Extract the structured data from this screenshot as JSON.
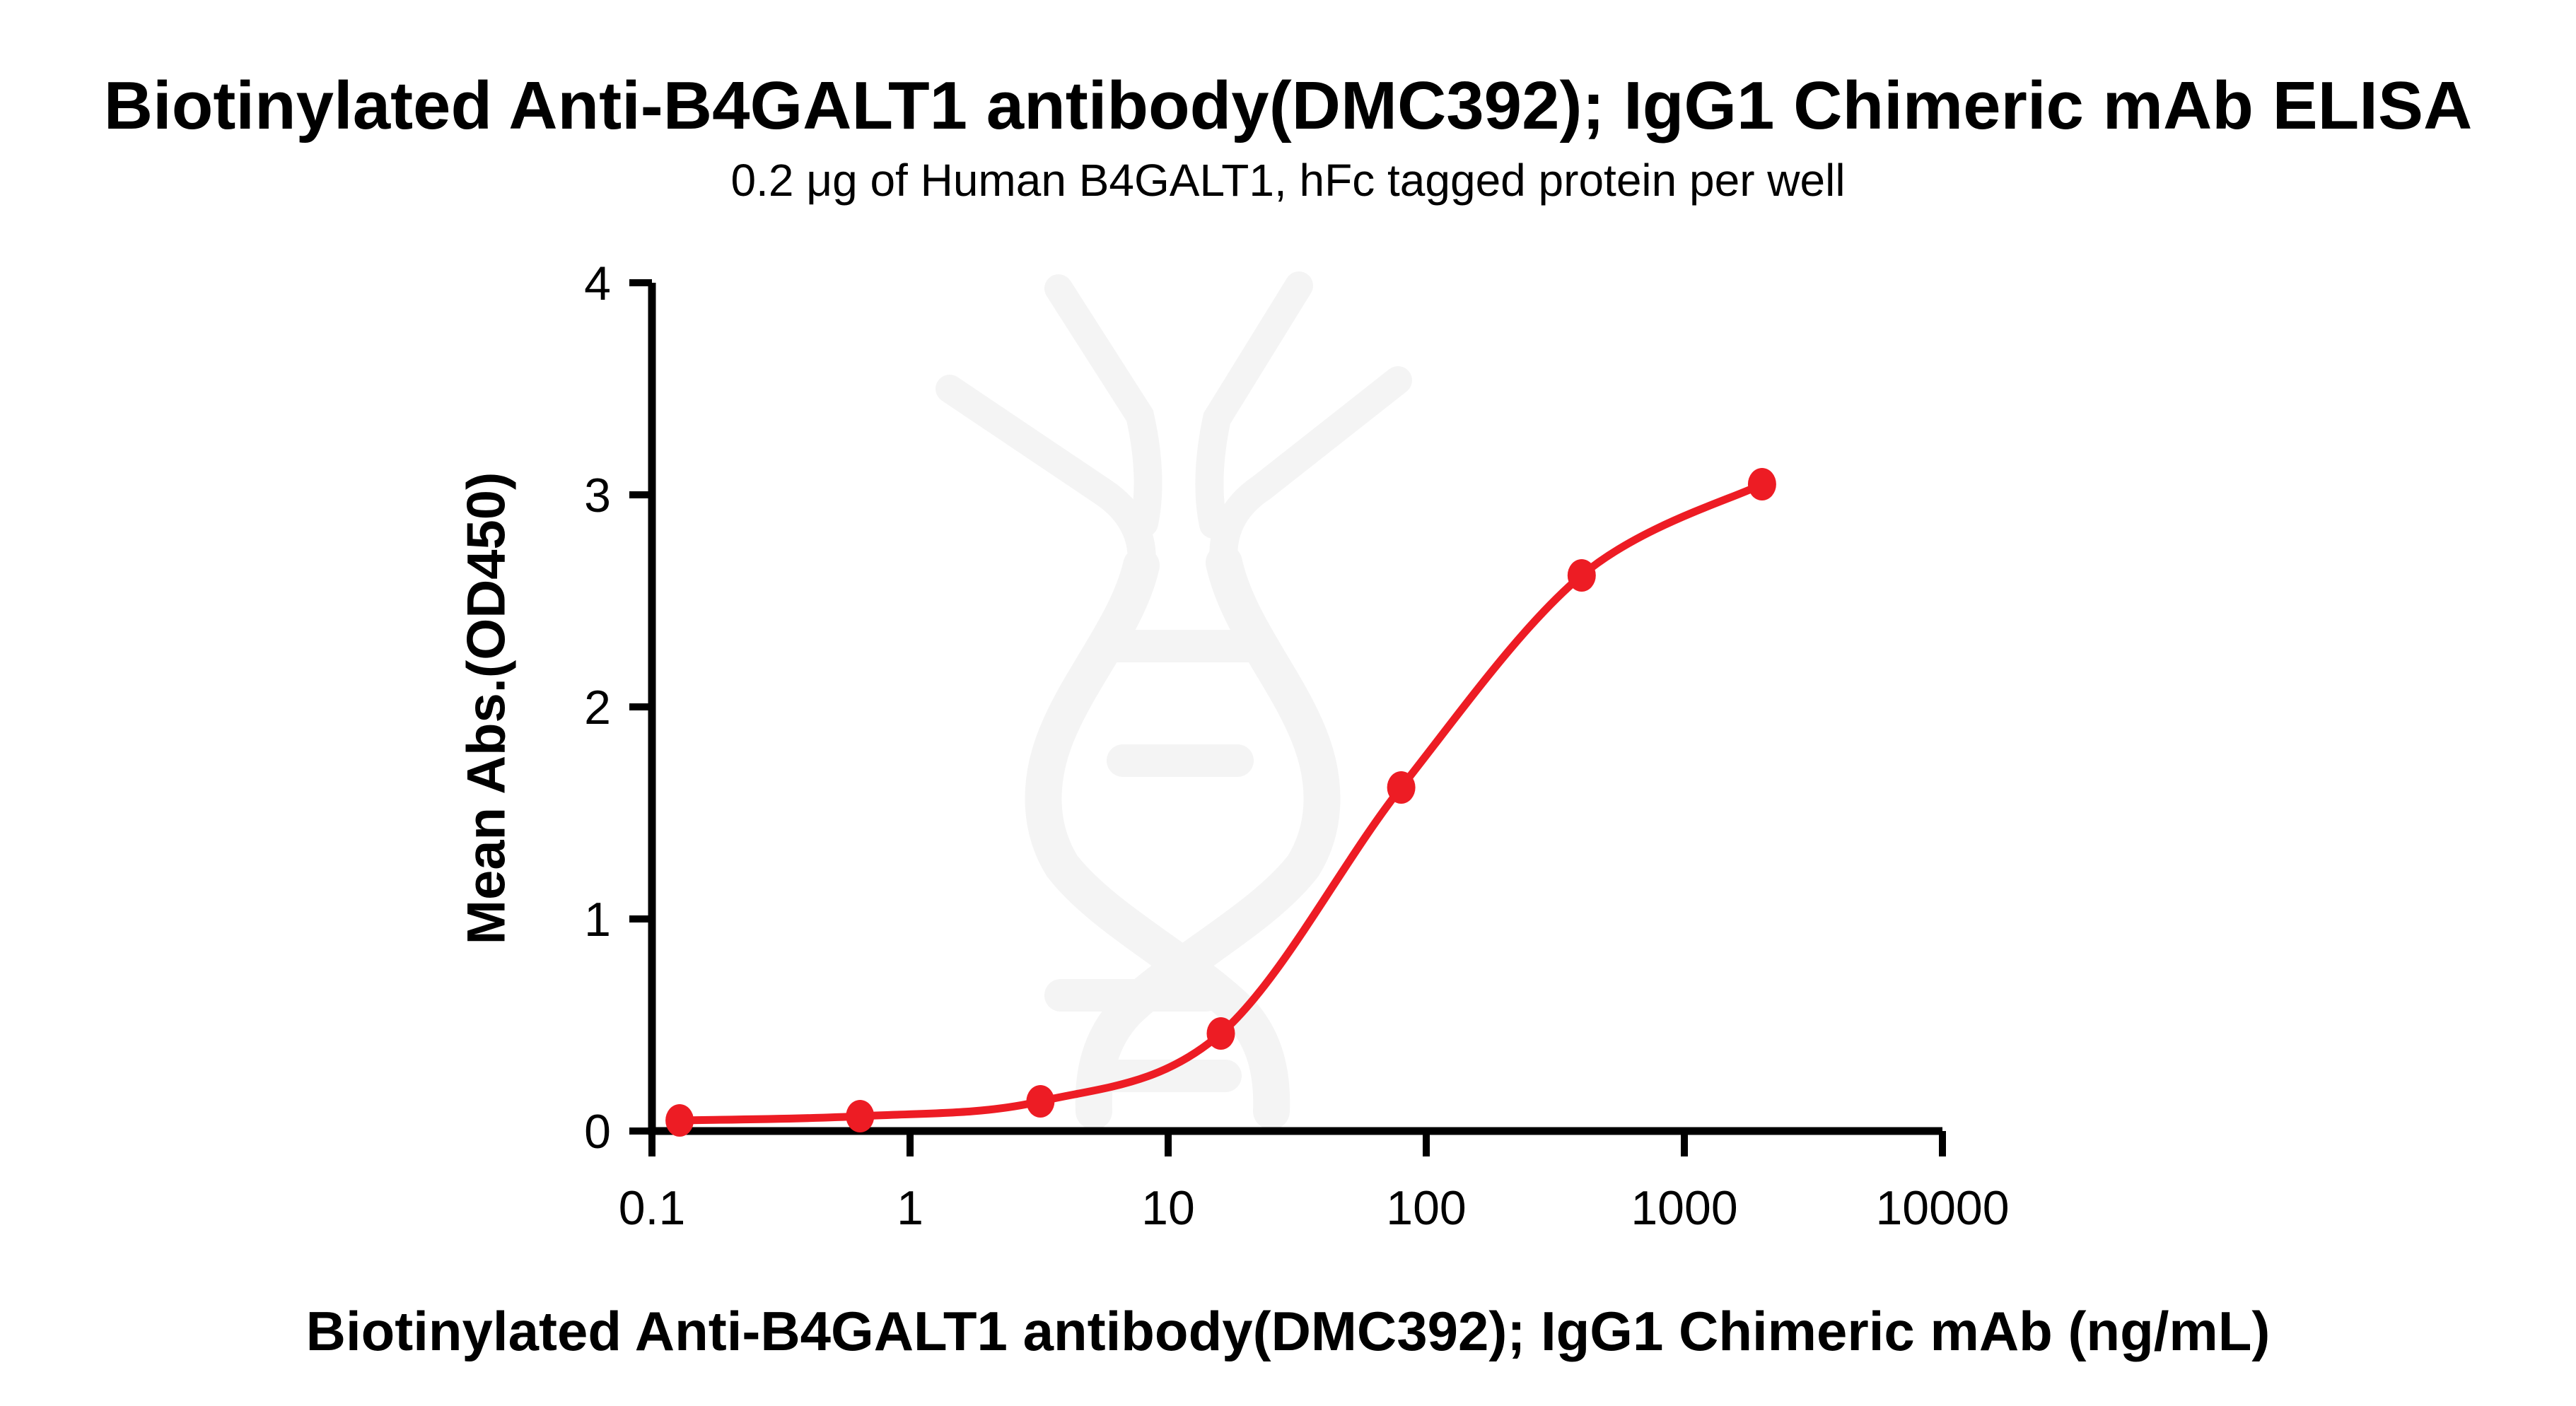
{
  "chart_data": {
    "type": "scatter",
    "title": "Biotinylated Anti-B4GALT1 antibody(DMC392); IgG1 Chimeric mAb ELISA",
    "subtitle": "0.2 μg of Human B4GALT1, hFc tagged protein per well",
    "xlabel": "Biotinylated Anti-B4GALT1 antibody(DMC392); IgG1 Chimeric mAb (ng/mL)",
    "ylabel": "Mean Abs.(OD450)",
    "xscale": "log",
    "xlim": [
      0.1,
      10000
    ],
    "ylim": [
      0,
      4
    ],
    "xticks": [
      0.1,
      1,
      10,
      100,
      1000,
      10000
    ],
    "xtick_labels": [
      "0.1",
      "1",
      "10",
      "100",
      "1000",
      "10000"
    ],
    "yticks": [
      0,
      1,
      2,
      3,
      4
    ],
    "ytick_labels": [
      "0",
      "1",
      "2",
      "3",
      "4"
    ],
    "grid": false,
    "legend": "none",
    "series_name": "Biotinylated Anti-B4GALT1 antibody(DMC392); IgG1 Chimeric mAb",
    "x": [
      0.128,
      0.64,
      3.2,
      16,
      80,
      400,
      2000
    ],
    "y": [
      0.05,
      0.07,
      0.14,
      0.46,
      1.62,
      2.62,
      3.05
    ],
    "curve_style": "smooth sigmoidal (4PL-like) through points"
  },
  "colors": {
    "curve_red": "#ED1C24",
    "axis_black": "#000000",
    "watermark_gray": "#F4F4F4"
  }
}
